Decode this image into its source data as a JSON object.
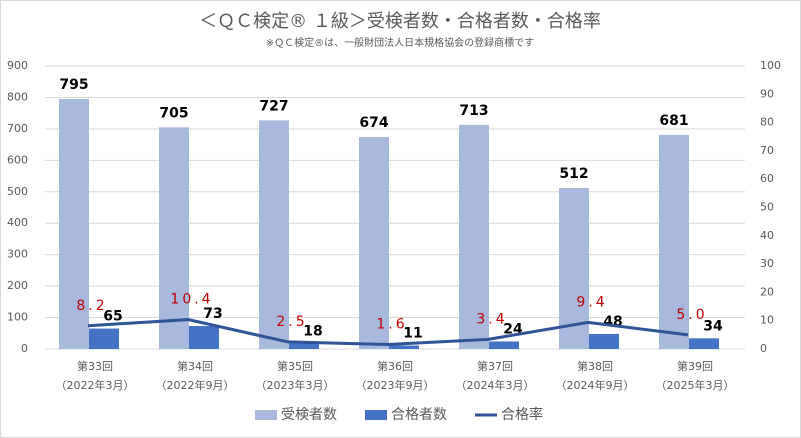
{
  "chart_data": {
    "type": "bar",
    "title": "＜ＱＣ検定® １級＞受検者数・合格者数・合格率",
    "subtitle": "※ＱＣ検定®は、一般財団法人日本規格協会の登録商標です",
    "categories": [
      [
        "第33回",
        "（2022年3月）"
      ],
      [
        "第34回",
        "（2022年9月）"
      ],
      [
        "第35回",
        "（2023年3月）"
      ],
      [
        "第36回",
        "（2023年9月）"
      ],
      [
        "第37回",
        "（2024年3月）"
      ],
      [
        "第38回",
        "（2024年9月）"
      ],
      [
        "第39回",
        "（2025年3月）"
      ]
    ],
    "series": [
      {
        "name": "受検者数",
        "color": "#a9b8dd",
        "type": "bar",
        "values": [
          795,
          705,
          727,
          674,
          713,
          512,
          681
        ]
      },
      {
        "name": "合格者数",
        "color": "#4472c4",
        "type": "bar",
        "values": [
          65,
          73,
          18,
          11,
          24,
          48,
          34
        ]
      },
      {
        "name": "合格率",
        "color": "#2f5597",
        "type": "line",
        "axis": "y2",
        "values": [
          8.2,
          10.4,
          2.5,
          1.6,
          3.4,
          9.4,
          5.0
        ],
        "value_labels": [
          "8.2",
          "10.4",
          "2.5",
          "1.6",
          "3.4",
          "9.4",
          "5.0"
        ]
      }
    ],
    "ylim": [
      0,
      900
    ],
    "yticks": [
      0,
      100,
      200,
      300,
      400,
      500,
      600,
      700,
      800,
      900
    ],
    "y2lim": [
      0,
      100
    ],
    "y2ticks": [
      0,
      10,
      20,
      30,
      40,
      50,
      60,
      70,
      80,
      90,
      100
    ],
    "grid": true,
    "legend": "bottom"
  }
}
